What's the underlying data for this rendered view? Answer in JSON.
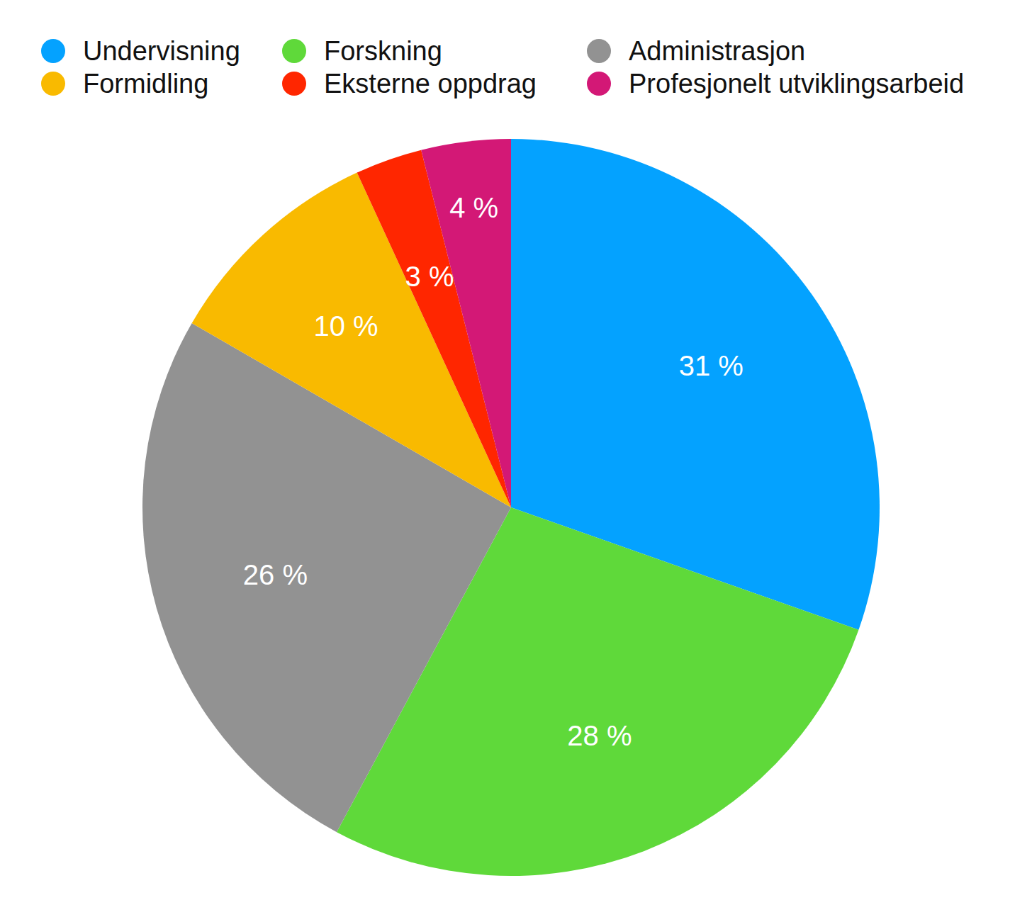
{
  "chart_data": {
    "type": "pie",
    "categories": [
      "Undervisning",
      "Forskning",
      "Administrasjon",
      "Formidling",
      "Eksterne oppdrag",
      "Profesjonelt utviklingsarbeid"
    ],
    "values": [
      31,
      28,
      26,
      10,
      3,
      4
    ],
    "value_labels": [
      "31 %",
      "28 %",
      "26 %",
      "10 %",
      "3 %",
      "4 %"
    ],
    "colors": [
      "#04a2ff",
      "#5fd93a",
      "#929292",
      "#f9ba00",
      "#ff2600",
      "#d31876"
    ],
    "data_labels": true,
    "legend": "top"
  }
}
